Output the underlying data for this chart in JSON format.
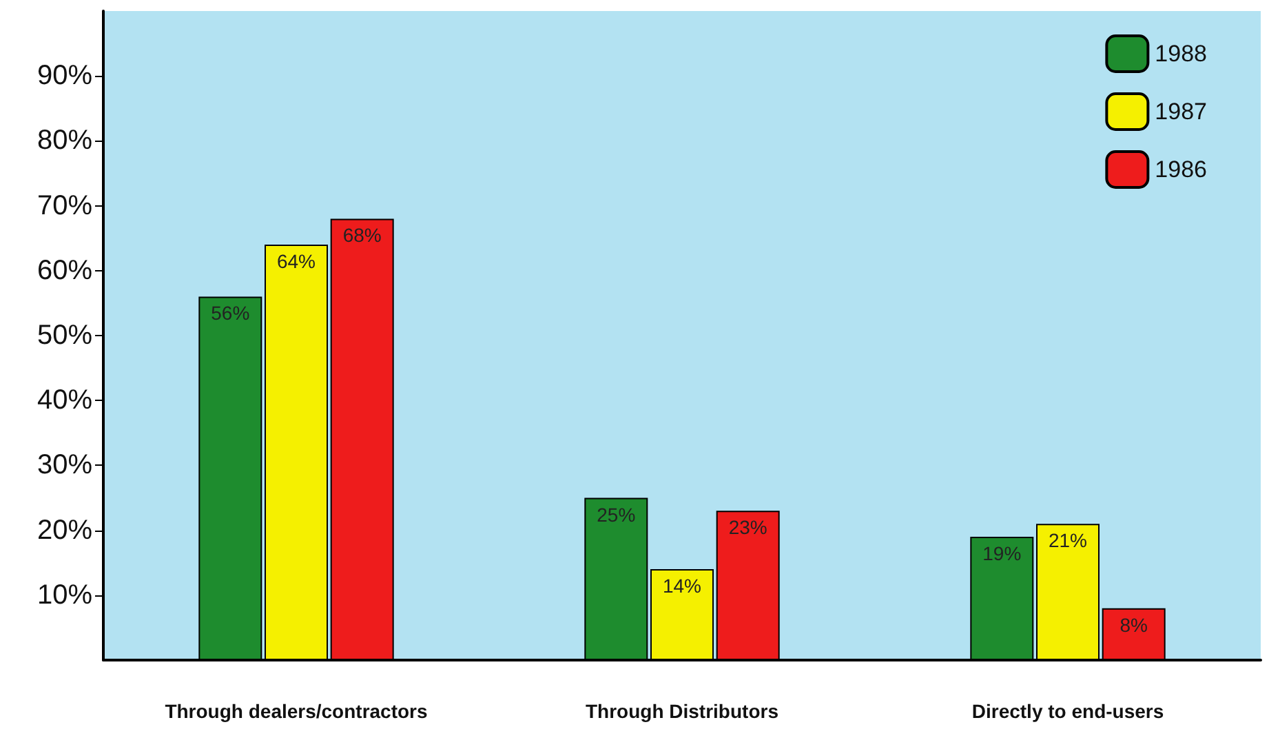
{
  "chart_data": {
    "type": "bar",
    "categories": [
      "Through dealers/contractors",
      "Through Distributors",
      "Directly to end-users"
    ],
    "series": [
      {
        "name": "1988",
        "color": "#1e8c2e",
        "values": [
          56,
          25,
          19
        ],
        "value_labels": [
          "56%",
          "25%",
          "19%"
        ]
      },
      {
        "name": "1987",
        "color": "#f5f000",
        "values": [
          64,
          14,
          21
        ],
        "value_labels": [
          "64%",
          "14%",
          "21%"
        ]
      },
      {
        "name": "1986",
        "color": "#ee1c1c",
        "values": [
          68,
          23,
          8
        ],
        "value_labels": [
          "68%",
          "23%",
          "8%"
        ]
      }
    ],
    "ylim": [
      0,
      100
    ],
    "yticks": [
      {
        "value": 10,
        "label": "10%"
      },
      {
        "value": 20,
        "label": "20%"
      },
      {
        "value": 30,
        "label": "30%"
      },
      {
        "value": 40,
        "label": "40%"
      },
      {
        "value": 50,
        "label": "50%"
      },
      {
        "value": 60,
        "label": "60%"
      },
      {
        "value": 70,
        "label": "70%"
      },
      {
        "value": 80,
        "label": "80%"
      },
      {
        "value": 90,
        "label": "90%"
      }
    ],
    "grid": false,
    "legend": "top right"
  }
}
